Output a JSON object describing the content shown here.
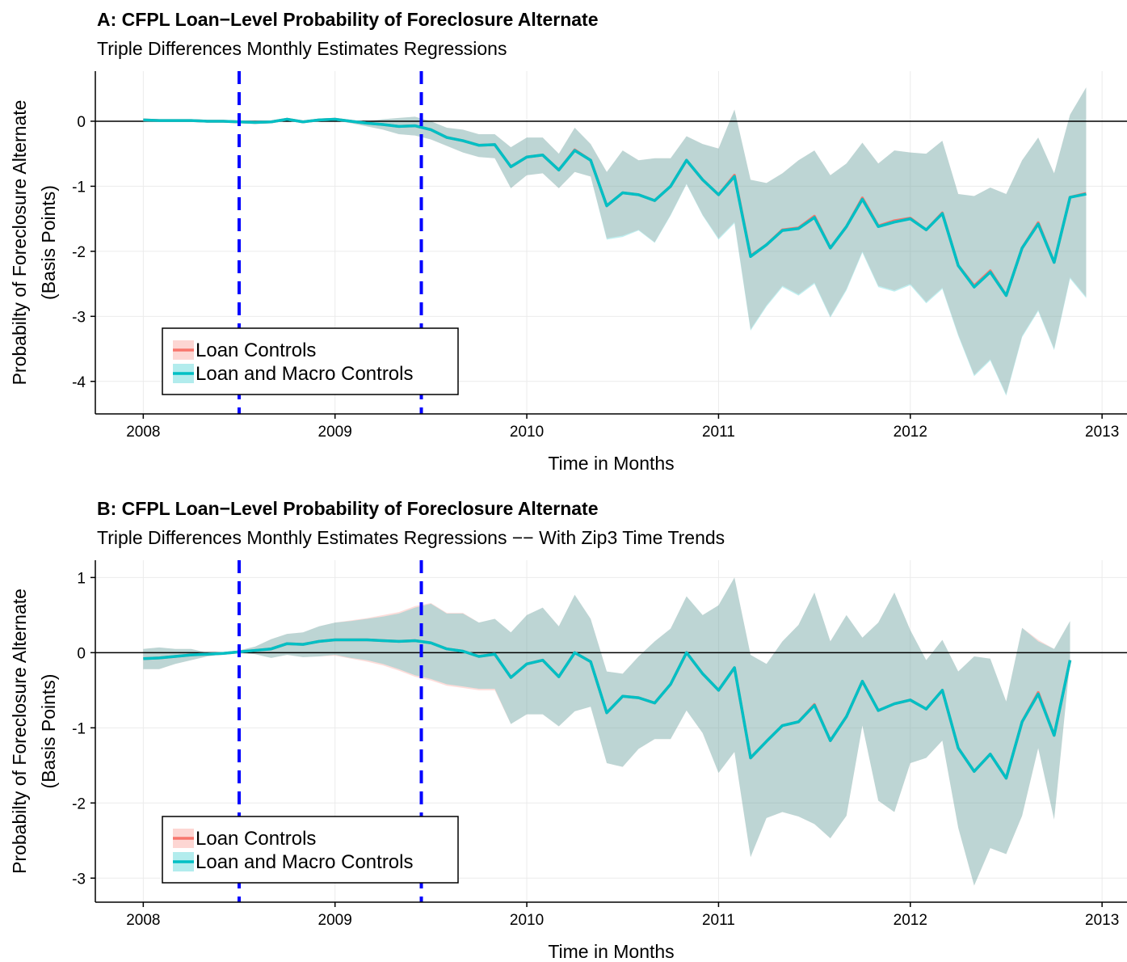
{
  "chart_data": [
    {
      "type": "line",
      "title": "A: CFPL Loan−Level Probability of Foreclosure Alternate",
      "subtitle": "Triple Differences Monthly Estimates Regressions",
      "xlabel": "Time in Months",
      "ylabel": [
        "Probabilty of Foreclosure Alternate",
        "(Basis Points)"
      ],
      "xlim": [
        2007.75,
        2013.13
      ],
      "xticks": [
        2008,
        2009,
        2010,
        2011,
        2012,
        2013
      ],
      "ylim": [
        -4.5,
        0.77
      ],
      "yticks": [
        -4,
        -3,
        -2,
        -1,
        0
      ],
      "grid": true,
      "hline": 0,
      "vlines": [
        2008.5,
        2009.45
      ],
      "vline_color": "#0000ff",
      "legend": "bottom-left",
      "x": [
        2008,
        2008.083,
        2008.167,
        2008.25,
        2008.333,
        2008.417,
        2008.5,
        2008.583,
        2008.667,
        2008.75,
        2008.833,
        2008.917,
        2009,
        2009.083,
        2009.167,
        2009.25,
        2009.333,
        2009.417,
        2009.5,
        2009.583,
        2009.667,
        2009.75,
        2009.833,
        2009.917,
        2010,
        2010.083,
        2010.167,
        2010.25,
        2010.333,
        2010.417,
        2010.5,
        2010.583,
        2010.667,
        2010.75,
        2010.833,
        2010.917,
        2011,
        2011.083,
        2011.167,
        2011.25,
        2011.333,
        2011.417,
        2011.5,
        2011.583,
        2011.667,
        2011.75,
        2011.833,
        2011.917,
        2012,
        2012.083,
        2012.167,
        2012.25,
        2012.333,
        2012.417,
        2012.5,
        2012.583,
        2012.667,
        2012.75,
        2012.833,
        2012.917
      ],
      "series": [
        {
          "name": "Loan Controls",
          "color": "#F8766D",
          "values": [
            0.02,
            0.01,
            0.01,
            0.01,
            0,
            0,
            -0.01,
            -0.02,
            -0.01,
            0.03,
            -0.01,
            0.02,
            0.03,
            0,
            -0.03,
            -0.05,
            -0.08,
            -0.07,
            -0.13,
            -0.25,
            -0.3,
            -0.37,
            -0.36,
            -0.7,
            -0.55,
            -0.52,
            -0.75,
            -0.44,
            -0.6,
            -1.3,
            -1.1,
            -1.13,
            -1.22,
            -1.0,
            -0.6,
            -0.9,
            -1.13,
            -0.83,
            -2.07,
            -1.9,
            -1.67,
            -1.64,
            -1.46,
            -1.95,
            -1.62,
            -1.18,
            -1.61,
            -1.53,
            -1.49,
            -1.67,
            -1.41,
            -2.22,
            -2.53,
            -2.3,
            -2.68,
            -1.95,
            -1.56,
            -2.17,
            -1.17,
            -1.11
          ],
          "lower": [
            0,
            -0.01,
            -0.01,
            -0.01,
            -0.02,
            -0.02,
            -0.03,
            -0.04,
            -0.03,
            0.01,
            -0.03,
            0,
            0.01,
            -0.03,
            -0.08,
            -0.13,
            -0.2,
            -0.22,
            -0.28,
            -0.38,
            -0.48,
            -0.55,
            -0.57,
            -1.03,
            -0.83,
            -0.8,
            -1.03,
            -0.78,
            -0.85,
            -1.8,
            -1.76,
            -1.67,
            -1.86,
            -1.44,
            -0.96,
            -1.44,
            -1.8,
            -1.55,
            -3.2,
            -2.83,
            -2.53,
            -2.66,
            -2.48,
            -3.0,
            -2.58,
            -2.0,
            -2.53,
            -2.6,
            -2.5,
            -2.78,
            -2.56,
            -3.28,
            -3.9,
            -3.66,
            -4.2,
            -3.3,
            -2.9,
            -3.5,
            -2.4,
            -2.7
          ],
          "upper": [
            0.04,
            0.03,
            0.03,
            0.03,
            0.02,
            0.02,
            0.01,
            0,
            0.01,
            0.05,
            0.01,
            0.04,
            0.05,
            0,
            0,
            0.03,
            0.05,
            0.07,
            0,
            -0.1,
            -0.13,
            -0.2,
            -0.2,
            -0.4,
            -0.25,
            -0.25,
            -0.5,
            -0.1,
            -0.35,
            -0.78,
            -0.45,
            -0.6,
            -0.57,
            -0.57,
            -0.23,
            -0.35,
            -0.42,
            0.18,
            -0.9,
            -0.95,
            -0.8,
            -0.6,
            -0.45,
            -0.83,
            -0.65,
            -0.33,
            -0.65,
            -0.45,
            -0.48,
            -0.5,
            -0.3,
            -1.12,
            -1.15,
            -1.02,
            -1.12,
            -0.6,
            -0.25,
            -0.8,
            0.1,
            0.52
          ]
        },
        {
          "name": "Loan and Macro Controls",
          "color": "#00BFC4",
          "values": [
            0.02,
            0.01,
            0.01,
            0.01,
            0,
            0,
            -0.01,
            -0.02,
            -0.01,
            0.03,
            -0.01,
            0.02,
            0.03,
            0,
            -0.03,
            -0.05,
            -0.08,
            -0.07,
            -0.13,
            -0.25,
            -0.3,
            -0.37,
            -0.36,
            -0.7,
            -0.55,
            -0.52,
            -0.75,
            -0.45,
            -0.6,
            -1.3,
            -1.1,
            -1.13,
            -1.22,
            -1.0,
            -0.6,
            -0.9,
            -1.13,
            -0.85,
            -2.08,
            -1.9,
            -1.68,
            -1.65,
            -1.48,
            -1.95,
            -1.62,
            -1.2,
            -1.62,
            -1.55,
            -1.5,
            -1.67,
            -1.42,
            -2.22,
            -2.55,
            -2.32,
            -2.68,
            -1.95,
            -1.58,
            -2.17,
            -1.17,
            -1.12
          ],
          "lower": [
            0,
            -0.01,
            -0.01,
            -0.01,
            -0.02,
            -0.02,
            -0.03,
            -0.04,
            -0.03,
            0.01,
            -0.03,
            0,
            0.01,
            -0.03,
            -0.08,
            -0.13,
            -0.2,
            -0.22,
            -0.28,
            -0.38,
            -0.48,
            -0.55,
            -0.57,
            -1.03,
            -0.83,
            -0.8,
            -1.03,
            -0.78,
            -0.85,
            -1.82,
            -1.78,
            -1.68,
            -1.87,
            -1.45,
            -0.97,
            -1.45,
            -1.82,
            -1.57,
            -3.22,
            -2.85,
            -2.55,
            -2.68,
            -2.5,
            -3.02,
            -2.6,
            -2.02,
            -2.55,
            -2.62,
            -2.52,
            -2.8,
            -2.58,
            -3.3,
            -3.92,
            -3.68,
            -4.22,
            -3.32,
            -2.92,
            -3.52,
            -2.42,
            -2.72
          ],
          "upper": [
            0.04,
            0.03,
            0.03,
            0.03,
            0.02,
            0.02,
            0.01,
            0,
            0.01,
            0.05,
            0.01,
            0.04,
            0.05,
            0,
            0,
            0.03,
            0.05,
            0.07,
            0,
            -0.1,
            -0.13,
            -0.2,
            -0.2,
            -0.4,
            -0.25,
            -0.25,
            -0.5,
            -0.1,
            -0.35,
            -0.78,
            -0.45,
            -0.6,
            -0.57,
            -0.57,
            -0.23,
            -0.35,
            -0.42,
            0.18,
            -0.9,
            -0.95,
            -0.8,
            -0.6,
            -0.45,
            -0.83,
            -0.65,
            -0.33,
            -0.65,
            -0.45,
            -0.48,
            -0.5,
            -0.3,
            -1.12,
            -1.15,
            -1.02,
            -1.12,
            -0.6,
            -0.25,
            -0.8,
            0.1,
            0.52
          ]
        }
      ]
    },
    {
      "type": "line",
      "title": "B: CFPL Loan−Level Probability of Foreclosure Alternate",
      "subtitle": "Triple Differences Monthly Estimates Regressions −− With Zip3 Time Trends",
      "xlabel": "Time in Months",
      "ylabel": [
        "Probabilty of Foreclosure Alternate",
        "(Basis Points)"
      ],
      "xlim": [
        2007.75,
        2013.13
      ],
      "xticks": [
        2008,
        2009,
        2010,
        2011,
        2012,
        2013
      ],
      "ylim": [
        -3.32,
        1.23
      ],
      "yticks": [
        -3,
        -2,
        -1,
        0,
        1
      ],
      "grid": true,
      "hline": 0,
      "vlines": [
        2008.5,
        2009.45
      ],
      "vline_color": "#0000ff",
      "legend": "bottom-left",
      "x": [
        2008,
        2008.083,
        2008.167,
        2008.25,
        2008.333,
        2008.417,
        2008.5,
        2008.583,
        2008.667,
        2008.75,
        2008.833,
        2008.917,
        2009,
        2009.083,
        2009.167,
        2009.25,
        2009.333,
        2009.417,
        2009.5,
        2009.583,
        2009.667,
        2009.75,
        2009.833,
        2009.917,
        2010,
        2010.083,
        2010.167,
        2010.25,
        2010.333,
        2010.417,
        2010.5,
        2010.583,
        2010.667,
        2010.75,
        2010.833,
        2010.917,
        2011,
        2011.083,
        2011.167,
        2011.25,
        2011.333,
        2011.417,
        2011.5,
        2011.583,
        2011.667,
        2011.75,
        2011.833,
        2011.917,
        2012,
        2012.083,
        2012.167,
        2012.25,
        2012.333,
        2012.417,
        2012.5,
        2012.583,
        2012.667,
        2012.75,
        2012.833
      ],
      "series": [
        {
          "name": "Loan Controls",
          "color": "#F8766D",
          "values": [
            -0.08,
            -0.07,
            -0.05,
            -0.03,
            -0.02,
            -0.01,
            0.01,
            0.03,
            0.05,
            0.12,
            0.11,
            0.15,
            0.17,
            0.17,
            0.17,
            0.16,
            0.15,
            0.16,
            0.13,
            0.05,
            0.02,
            -0.05,
            -0.02,
            -0.33,
            -0.15,
            -0.1,
            -0.32,
            0,
            -0.12,
            -0.8,
            -0.58,
            -0.6,
            -0.67,
            -0.42,
            0,
            -0.28,
            -0.5,
            -0.2,
            -1.4,
            -1.18,
            -0.97,
            -0.92,
            -0.69,
            -1.17,
            -0.85,
            -0.38,
            -0.77,
            -0.68,
            -0.63,
            -0.75,
            -0.5,
            -1.27,
            -1.58,
            -1.35,
            -1.67,
            -0.92,
            -0.53,
            -1.1,
            -0.1
          ],
          "lower": [
            -0.22,
            -0.22,
            -0.15,
            -0.1,
            -0.05,
            -0.02,
            0,
            -0.02,
            -0.07,
            -0.03,
            -0.06,
            -0.05,
            -0.04,
            -0.08,
            -0.12,
            -0.17,
            -0.24,
            -0.32,
            -0.37,
            -0.44,
            -0.47,
            -0.5,
            -0.5,
            -0.95,
            -0.82,
            -0.82,
            -0.98,
            -0.78,
            -0.72,
            -1.47,
            -1.52,
            -1.28,
            -1.15,
            -1.15,
            -0.77,
            -1.07,
            -1.6,
            -1.32,
            -2.72,
            -2.2,
            -2.12,
            -2.18,
            -2.28,
            -2.47,
            -2.17,
            -0.97,
            -1.97,
            -2.12,
            -1.47,
            -1.4,
            -1.17,
            -2.33,
            -3.1,
            -2.6,
            -2.68,
            -2.17,
            -1.27,
            -2.22,
            -0.12
          ],
          "upper": [
            0.05,
            0.07,
            0.05,
            0.05,
            0,
            0,
            0.03,
            0.08,
            0.18,
            0.25,
            0.27,
            0.35,
            0.4,
            0.43,
            0.46,
            0.5,
            0.54,
            0.62,
            0.66,
            0.53,
            0.53,
            0.4,
            0.45,
            0.27,
            0.5,
            0.6,
            0.35,
            0.77,
            0.45,
            -0.25,
            -0.28,
            -0.05,
            0.15,
            0.32,
            0.75,
            0.5,
            0.63,
            1.0,
            -0.03,
            -0.15,
            0.15,
            0.37,
            0.8,
            0.15,
            0.5,
            0.2,
            0.4,
            0.8,
            0.3,
            -0.1,
            0.17,
            -0.25,
            -0.05,
            -0.08,
            -0.65,
            0.33,
            0.17,
            0.05,
            0.42
          ]
        },
        {
          "name": "Loan and Macro Controls",
          "color": "#00BFC4",
          "values": [
            -0.08,
            -0.07,
            -0.05,
            -0.03,
            -0.02,
            -0.01,
            0.01,
            0.03,
            0.05,
            0.12,
            0.11,
            0.15,
            0.17,
            0.17,
            0.17,
            0.16,
            0.15,
            0.16,
            0.13,
            0.05,
            0.02,
            -0.05,
            -0.02,
            -0.33,
            -0.15,
            -0.1,
            -0.32,
            0,
            -0.12,
            -0.8,
            -0.58,
            -0.6,
            -0.67,
            -0.42,
            0,
            -0.28,
            -0.5,
            -0.2,
            -1.4,
            -1.18,
            -0.97,
            -0.92,
            -0.7,
            -1.17,
            -0.85,
            -0.38,
            -0.77,
            -0.68,
            -0.63,
            -0.75,
            -0.5,
            -1.27,
            -1.58,
            -1.35,
            -1.67,
            -0.92,
            -0.55,
            -1.1,
            -0.1
          ],
          "lower": [
            -0.22,
            -0.22,
            -0.15,
            -0.1,
            -0.05,
            -0.02,
            0,
            -0.02,
            -0.07,
            -0.03,
            -0.06,
            -0.05,
            -0.03,
            -0.07,
            -0.1,
            -0.15,
            -0.22,
            -0.3,
            -0.35,
            -0.42,
            -0.45,
            -0.48,
            -0.48,
            -0.95,
            -0.82,
            -0.82,
            -0.98,
            -0.78,
            -0.72,
            -1.47,
            -1.52,
            -1.28,
            -1.15,
            -1.15,
            -0.77,
            -1.07,
            -1.6,
            -1.32,
            -2.72,
            -2.2,
            -2.12,
            -2.18,
            -2.28,
            -2.47,
            -2.17,
            -0.97,
            -1.97,
            -2.12,
            -1.47,
            -1.4,
            -1.17,
            -2.33,
            -3.1,
            -2.6,
            -2.68,
            -2.17,
            -1.27,
            -2.22,
            -0.12
          ],
          "upper": [
            0.05,
            0.07,
            0.05,
            0.05,
            0,
            0,
            0.03,
            0.08,
            0.18,
            0.25,
            0.27,
            0.35,
            0.4,
            0.42,
            0.45,
            0.48,
            0.52,
            0.6,
            0.65,
            0.52,
            0.52,
            0.4,
            0.45,
            0.27,
            0.5,
            0.6,
            0.35,
            0.77,
            0.45,
            -0.25,
            -0.28,
            -0.05,
            0.15,
            0.32,
            0.75,
            0.5,
            0.63,
            1.0,
            -0.03,
            -0.15,
            0.15,
            0.37,
            0.8,
            0.15,
            0.5,
            0.2,
            0.4,
            0.8,
            0.3,
            -0.1,
            0.17,
            -0.25,
            -0.05,
            -0.08,
            -0.65,
            0.33,
            0.15,
            0.05,
            0.42
          ]
        }
      ]
    }
  ]
}
